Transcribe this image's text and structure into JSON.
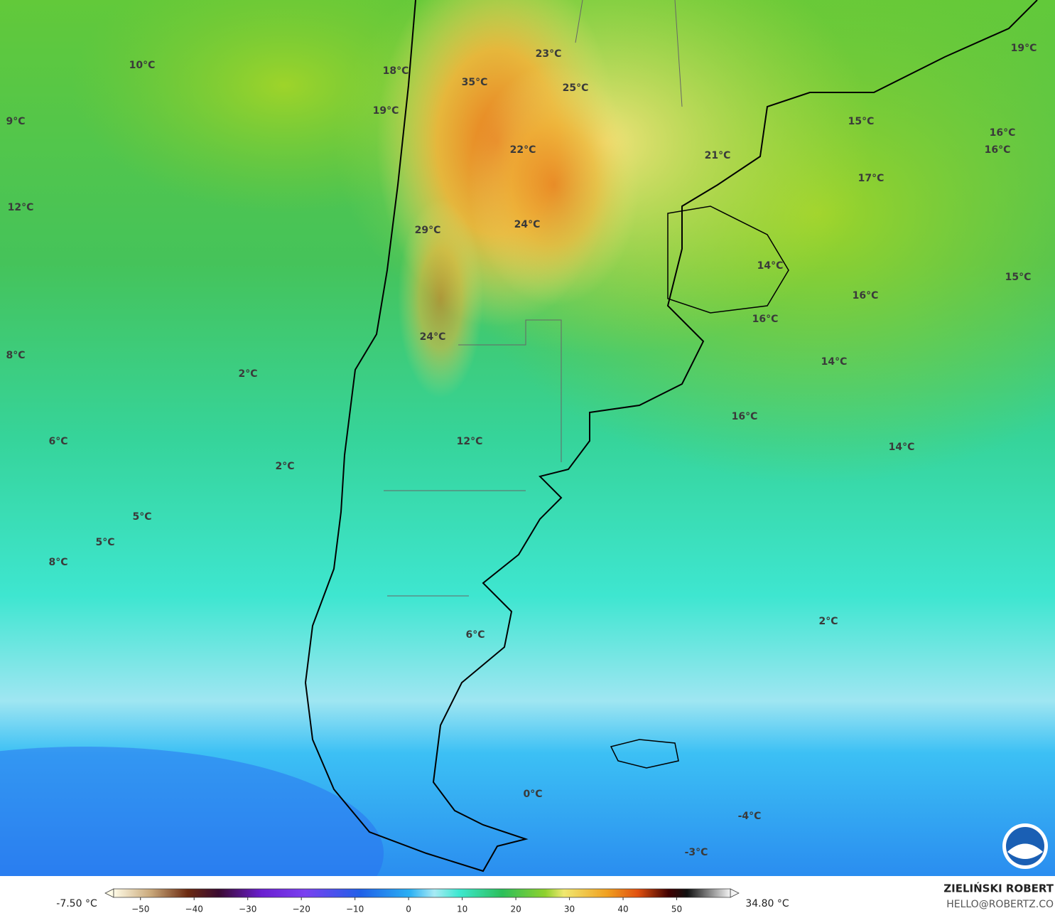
{
  "map": {
    "labels": [
      "10°C",
      "18°C",
      "35°C",
      "23°C",
      "25°C",
      "19°C",
      "9°C",
      "22°C",
      "21°C",
      "15°C",
      "16°C",
      "16°C",
      "17°C",
      "19°C",
      "12°C",
      "29°C",
      "24°C",
      "14°C",
      "16°C",
      "15°C",
      "16°C",
      "24°C",
      "8°C",
      "2°C",
      "14°C",
      "16°C",
      "6°C",
      "12°C",
      "14°C",
      "2°C",
      "5°C",
      "5°C",
      "8°C",
      "2°C",
      "6°C",
      "0°C",
      "-4°C",
      "-3°C"
    ]
  },
  "colorbar": {
    "min_label": "-7.50 °C",
    "max_label": "34.80 °C",
    "range": [
      -55,
      60
    ],
    "ticks": [
      {
        "value": -50,
        "label": "−50"
      },
      {
        "value": -40,
        "label": "−40"
      },
      {
        "value": -30,
        "label": "−30"
      },
      {
        "value": -20,
        "label": "−20"
      },
      {
        "value": -10,
        "label": "−10"
      },
      0,
      10,
      20,
      30,
      40,
      50
    ]
  },
  "credit": {
    "name": "ZIELIŃSKI ROBERT",
    "email": "HELLO@ROBERTZ.CO"
  }
}
